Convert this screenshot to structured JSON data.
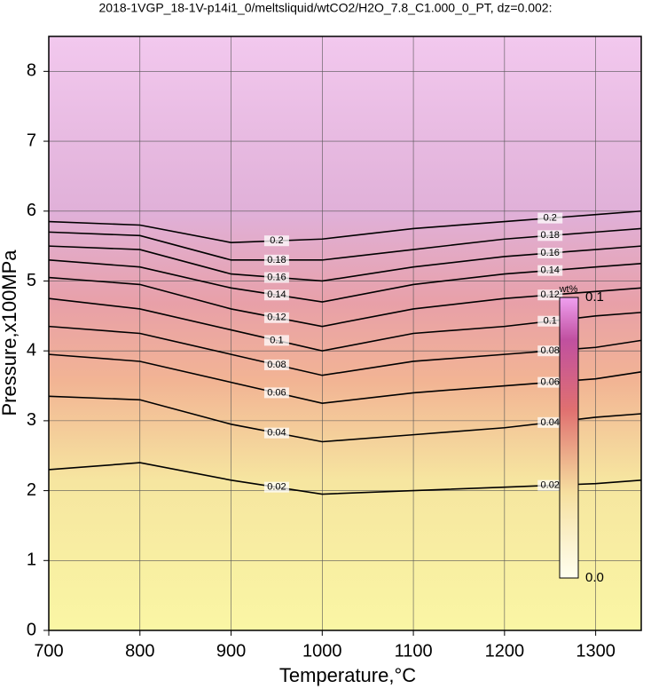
{
  "chart_data": {
    "type": "contour",
    "title": "2018-1VGP_18-1V-p14i1_0/meltsliquid/wtCO2/H2O_7.8_C1.000_0_PT, dz=0.002:",
    "x_label": "Temperature,°C",
    "y_label": "Pressure,x100MPa",
    "xlim": [
      700,
      1350
    ],
    "ylim": [
      0,
      8.5
    ],
    "xticks": [
      700,
      800,
      900,
      1000,
      1100,
      1200,
      1300
    ],
    "yticks": [
      0,
      1,
      2,
      3,
      4,
      5,
      6,
      7,
      8
    ],
    "grid": true,
    "x": [
      700,
      800,
      900,
      1000,
      1100,
      1200,
      1300,
      1350
    ],
    "contours": [
      {
        "level": 0.02,
        "values": [
          2.3,
          2.4,
          2.15,
          1.95,
          2.0,
          2.05,
          2.1,
          2.15
        ]
      },
      {
        "level": 0.04,
        "values": [
          3.35,
          3.3,
          2.95,
          2.7,
          2.8,
          2.9,
          3.05,
          3.1
        ]
      },
      {
        "level": 0.06,
        "values": [
          3.95,
          3.85,
          3.55,
          3.25,
          3.4,
          3.5,
          3.6,
          3.7
        ]
      },
      {
        "level": 0.08,
        "values": [
          4.35,
          4.25,
          3.95,
          3.65,
          3.85,
          3.95,
          4.05,
          4.15
        ]
      },
      {
        "level": 0.1,
        "values": [
          4.75,
          4.6,
          4.3,
          4.0,
          4.25,
          4.35,
          4.5,
          4.55
        ]
      },
      {
        "level": 0.12,
        "values": [
          5.05,
          4.95,
          4.6,
          4.35,
          4.6,
          4.75,
          4.85,
          4.9
        ]
      },
      {
        "level": 0.14,
        "values": [
          5.3,
          5.2,
          4.9,
          4.7,
          4.95,
          5.1,
          5.2,
          5.25
        ]
      },
      {
        "level": 0.16,
        "values": [
          5.5,
          5.45,
          5.1,
          5.0,
          5.2,
          5.35,
          5.45,
          5.5
        ]
      },
      {
        "level": 0.18,
        "values": [
          5.7,
          5.65,
          5.3,
          5.3,
          5.45,
          5.6,
          5.7,
          5.75
        ]
      },
      {
        "level": 0.2,
        "values": [
          5.85,
          5.8,
          5.55,
          5.6,
          5.75,
          5.85,
          5.95,
          6.0
        ]
      }
    ],
    "colorbar": {
      "label": "wt%",
      "max_label": "0.1",
      "min_label": "0.0"
    }
  }
}
